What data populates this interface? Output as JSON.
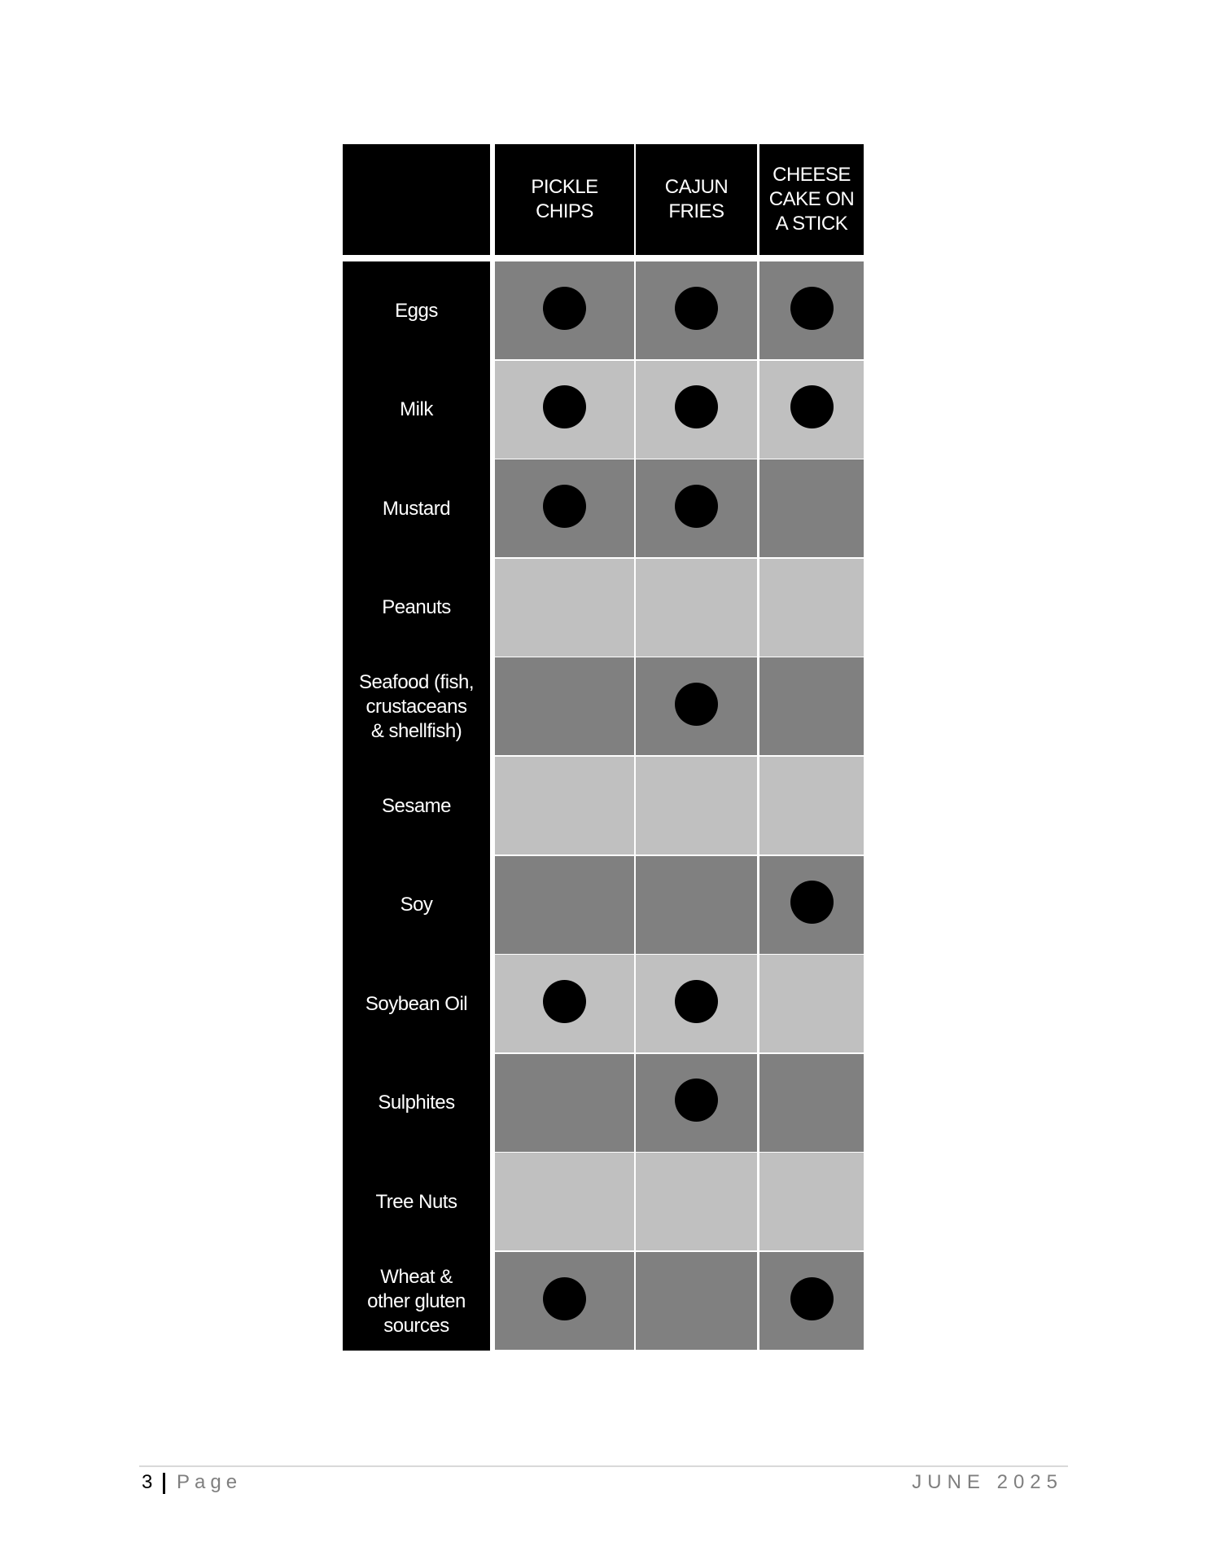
{
  "table": {
    "columns": [
      "PICKLE\nCHIPS",
      "CAJUN\nFRIES",
      "CHEESE\nCAKE ON\nA STICK"
    ],
    "rows": [
      {
        "label": "Eggs",
        "marks": [
          true,
          true,
          true
        ]
      },
      {
        "label": "Milk",
        "marks": [
          true,
          true,
          true
        ]
      },
      {
        "label": "Mustard",
        "marks": [
          true,
          true,
          false
        ]
      },
      {
        "label": "Peanuts",
        "marks": [
          false,
          false,
          false
        ]
      },
      {
        "label": "Seafood (fish,\ncrustaceans\n& shellfish)",
        "marks": [
          false,
          true,
          false
        ]
      },
      {
        "label": "Sesame",
        "marks": [
          false,
          false,
          false
        ]
      },
      {
        "label": "Soy",
        "marks": [
          false,
          false,
          true
        ]
      },
      {
        "label": "Soybean Oil",
        "marks": [
          true,
          true,
          false
        ]
      },
      {
        "label": "Sulphites",
        "marks": [
          false,
          true,
          false
        ]
      },
      {
        "label": "Tree Nuts",
        "marks": [
          false,
          false,
          false
        ]
      },
      {
        "label": "Wheat &\nother gluten\nsources",
        "marks": [
          true,
          false,
          true
        ]
      }
    ],
    "colors": {
      "header": "#000000",
      "row_dark": "#808080",
      "row_light": "#c0c0c0",
      "mark": "#000000"
    }
  },
  "footer": {
    "page_number": "3",
    "page_word": "Page",
    "date": "JUNE 2025"
  }
}
